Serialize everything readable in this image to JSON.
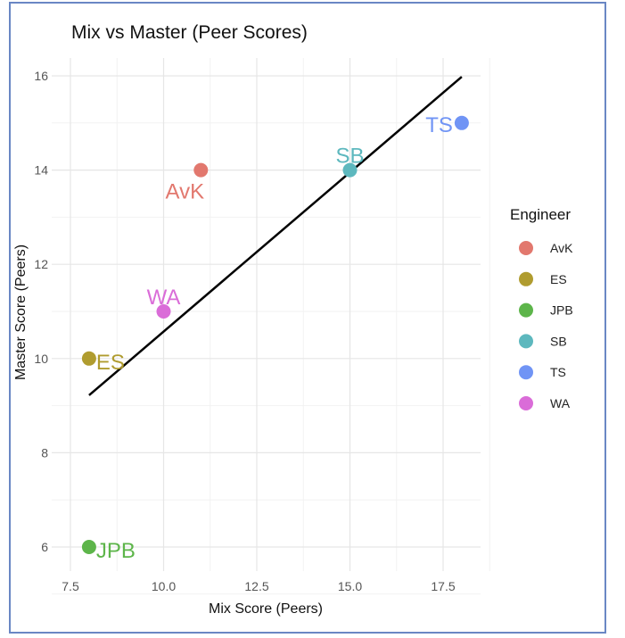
{
  "chart_data": {
    "type": "scatter",
    "title": "Mix vs Master (Peer Scores)",
    "xlabel": "Mix Score (Peers)",
    "ylabel": "Master Score (Peers)",
    "xlim": [
      7.5,
      18.6
    ],
    "ylim": [
      5.6,
      16.4
    ],
    "x_ticks": [
      7.5,
      10.0,
      12.5,
      15.0,
      17.5
    ],
    "x_tick_labels": [
      "7.5",
      "10.0",
      "12.5",
      "15.0",
      "17.5"
    ],
    "y_ticks": [
      6,
      8,
      10,
      12,
      14,
      16
    ],
    "y_tick_labels": [
      "6",
      "8",
      "10",
      "12",
      "14",
      "16"
    ],
    "grid": true,
    "legend": {
      "title": "Engineer",
      "position": "right"
    },
    "points": [
      {
        "name": "AvK",
        "x": 11,
        "y": 14,
        "color": "#e2786e",
        "label_pos": "below-left"
      },
      {
        "name": "ES",
        "x": 8,
        "y": 10,
        "color": "#b09c2f",
        "label_pos": "right"
      },
      {
        "name": "JPB",
        "x": 8,
        "y": 6,
        "color": "#5db54a",
        "label_pos": "right"
      },
      {
        "name": "SB",
        "x": 15,
        "y": 14,
        "color": "#5db8be",
        "label_pos": "above"
      },
      {
        "name": "TS",
        "x": 18,
        "y": 15,
        "color": "#7094f5",
        "label_pos": "left"
      },
      {
        "name": "WA",
        "x": 10,
        "y": 11,
        "color": "#da6cd8",
        "label_pos": "above"
      }
    ],
    "fit_line": {
      "x": [
        8,
        18
      ],
      "y": [
        9.22,
        15.98
      ],
      "color": "#000000"
    }
  }
}
